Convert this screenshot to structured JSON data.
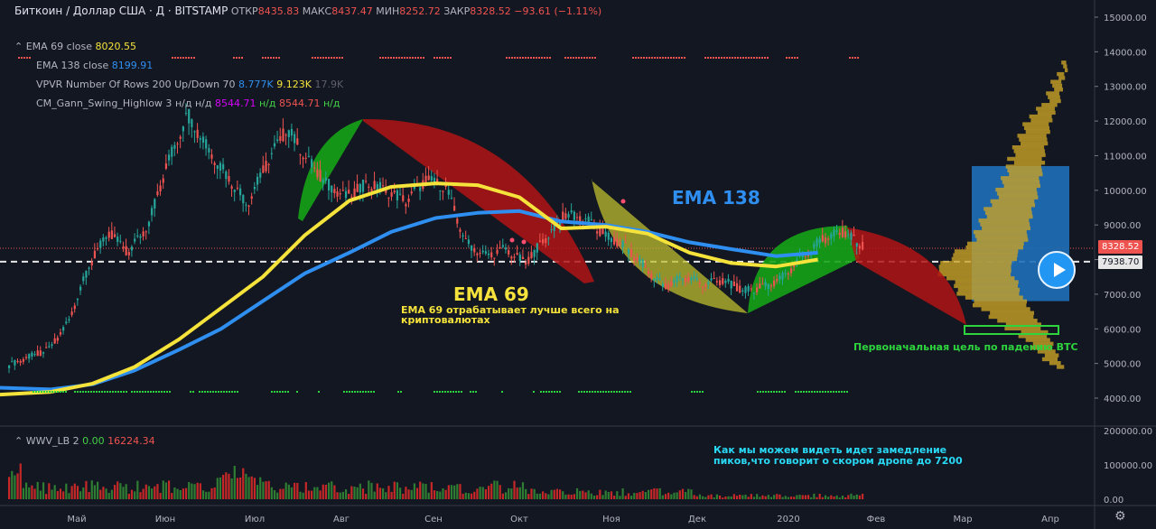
{
  "header": {
    "title": "Биткоин / Доллар США · Д · BITSTAMP",
    "open_label": "ОТКР",
    "open_value": "8435.83",
    "high_label": "МАКС",
    "high_value": "8437.47",
    "low_label": "МИН",
    "low_value": "8252.72",
    "close_label": "ЗАКР",
    "close_value": "8328.52",
    "change": "−93.61 (−1.11%)"
  },
  "indicators": {
    "ema69_label": "EMA 69 close",
    "ema69_value": "8020.55",
    "ema138_label": "EMA 138 close",
    "ema138_value": "8199.91",
    "vpvr_label": "VPVR Number Of Rows 200 Up/Down 70",
    "vpvr_up": "8.777K",
    "vpvr_down": "9.123K",
    "vpvr_total": "17.9K",
    "gann_label": "CM_Gann_Swing_Highlow 3",
    "gann_v1": "н/д",
    "gann_v2": "н/д",
    "gann_v3": "8544.71",
    "gann_v4": "н/д",
    "gann_v5": "8544.71",
    "gann_v6": "н/д",
    "wwv_label": "WWV_LB 2",
    "wwv_v1": "0.00",
    "wwv_v2": "16224.34"
  },
  "annotations": {
    "ema138": "EMA 138",
    "ema69": "EMA 69",
    "ema69_note_1": "EMA 69 отрабатывает лучше всего на",
    "ema69_note_2": "криптовалютах",
    "target": "Первоначальная цель по падению BTC",
    "slowdown_1": "Как мы можем видеть идет замедление",
    "slowdown_2": "пиков,что говорит о скором дропе до 7200"
  },
  "price_badges": {
    "last": "8328.52",
    "dashed": "7938.70"
  },
  "colors": {
    "background": "#131722",
    "ema69": "#f5e33b",
    "ema138": "#2f8ff0",
    "up": "#26a69a",
    "down": "#ef5350",
    "arc_green": "#16a316",
    "arc_red": "#b01414",
    "arc_olive": "#bdbd2e",
    "vpvr_up": "#2f8ff0",
    "vpvr_down": "#c9a227"
  },
  "chart_data": [
    {
      "type": "line",
      "title": "",
      "x": [
        "2019-04-01",
        "2019-04-16",
        "2019-05-01",
        "2019-05-16",
        "2019-06-01",
        "2019-06-16",
        "2019-07-01",
        "2019-07-16",
        "2019-08-01",
        "2019-08-16",
        "2019-09-01",
        "2019-09-16",
        "2019-10-01",
        "2019-10-16",
        "2019-11-01",
        "2019-11-16",
        "2019-12-01",
        "2019-12-16",
        "2020-01-01",
        "2020-01-16",
        "2020-02-01"
      ],
      "series": [
        {
          "name": "EMA 69 close",
          "values": [
            null,
            4180,
            4420,
            4900,
            5700,
            6600,
            7500,
            8700,
            9700,
            10100,
            10200,
            10150,
            9800,
            8900,
            8950,
            8750,
            8200,
            7900,
            7800,
            8000,
            null
          ]
        },
        {
          "name": "EMA 138 close",
          "values": [
            null,
            4250,
            4400,
            4800,
            5400,
            6000,
            6800,
            7600,
            8200,
            8800,
            9200,
            9350,
            9400,
            9100,
            9000,
            8800,
            8500,
            8300,
            8100,
            8200,
            null
          ]
        }
      ],
      "candles_approx": [
        4950,
        5200,
        5400,
        6200,
        7800,
        8800,
        8200,
        9000,
        10800,
        12200,
        11200,
        10400,
        9600,
        10800,
        11800,
        10900,
        10200,
        9800,
        10200,
        10000,
        9700,
        10300,
        10100,
        8500,
        8100,
        8300,
        7900,
        8600,
        9300,
        9200,
        8700,
        8400,
        7800,
        7200,
        7500,
        7300,
        7400,
        7100,
        7200,
        7500,
        8100,
        8600,
        8800,
        8400
      ],
      "ylim": [
        3600,
        15000
      ],
      "y_ticks": [
        "4000.00",
        "5000.00",
        "6000.00",
        "7000.00",
        "8000.00",
        "9000.00",
        "10000.00",
        "11000.00",
        "12000.00",
        "13000.00",
        "14000.00",
        "15000.00"
      ],
      "x_ticks": [
        "Май",
        "Июн",
        "Июл",
        "Авг",
        "Сен",
        "Окт",
        "Ноя",
        "Дек",
        "2020",
        "Фев",
        "Мар",
        "Апр"
      ]
    },
    {
      "type": "bar",
      "title": "",
      "series": [
        {
          "name": "WWV_LB 2",
          "values": []
        }
      ],
      "ylim": [
        0,
        200000
      ],
      "y_ticks": [
        "0.00",
        "100000.00",
        "200000.00"
      ]
    }
  ]
}
